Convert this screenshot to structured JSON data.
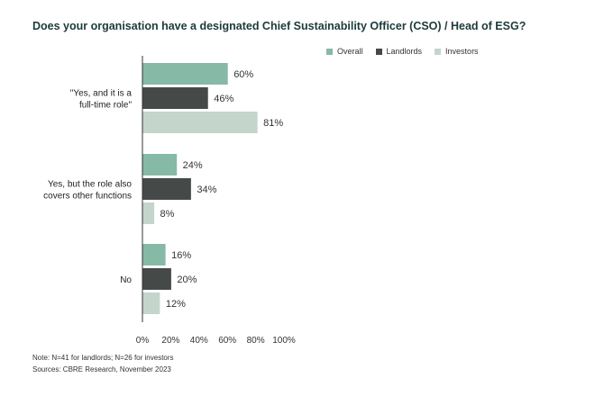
{
  "title": "Does your organisation have a designated Chief Sustainability Officer (CSO) / Head of ESG?",
  "colors": {
    "overall": "#86b9a6",
    "landlords": "#454a49",
    "investors": "#c4d5cb",
    "axis": "#333333",
    "title": "#1d3a3a"
  },
  "chart_data": {
    "type": "bar",
    "orientation": "horizontal",
    "categories": [
      "\"Yes, and it is a full-time role\"",
      "Yes, but the role also covers other functions",
      "No"
    ],
    "category_lines": [
      [
        "\"Yes, and it is a",
        "full-time role\""
      ],
      [
        "Yes, but the role also",
        "covers other functions"
      ],
      [
        "No"
      ]
    ],
    "series": [
      {
        "name": "Overall",
        "values": [
          60,
          24,
          16
        ]
      },
      {
        "name": "Landlords",
        "values": [
          46,
          34,
          20
        ]
      },
      {
        "name": "Investors",
        "values": [
          81,
          8,
          12
        ]
      }
    ],
    "value_labels": [
      [
        "60%",
        "46%",
        "81%"
      ],
      [
        "24%",
        "34%",
        "8%"
      ],
      [
        "16%",
        "20%",
        "12%"
      ]
    ],
    "xlim": [
      0,
      100
    ],
    "ticks": [
      0,
      20,
      40,
      60,
      80,
      100
    ],
    "tick_labels": [
      "0%",
      "20%",
      "40%",
      "60%",
      "80%",
      "100%"
    ],
    "legend_position": "top-right",
    "grid": false
  },
  "footnotes": {
    "note": "Note: N=41 for landlords; N=26 for investors",
    "source": "Sources: CBRE Research, November 2023"
  }
}
